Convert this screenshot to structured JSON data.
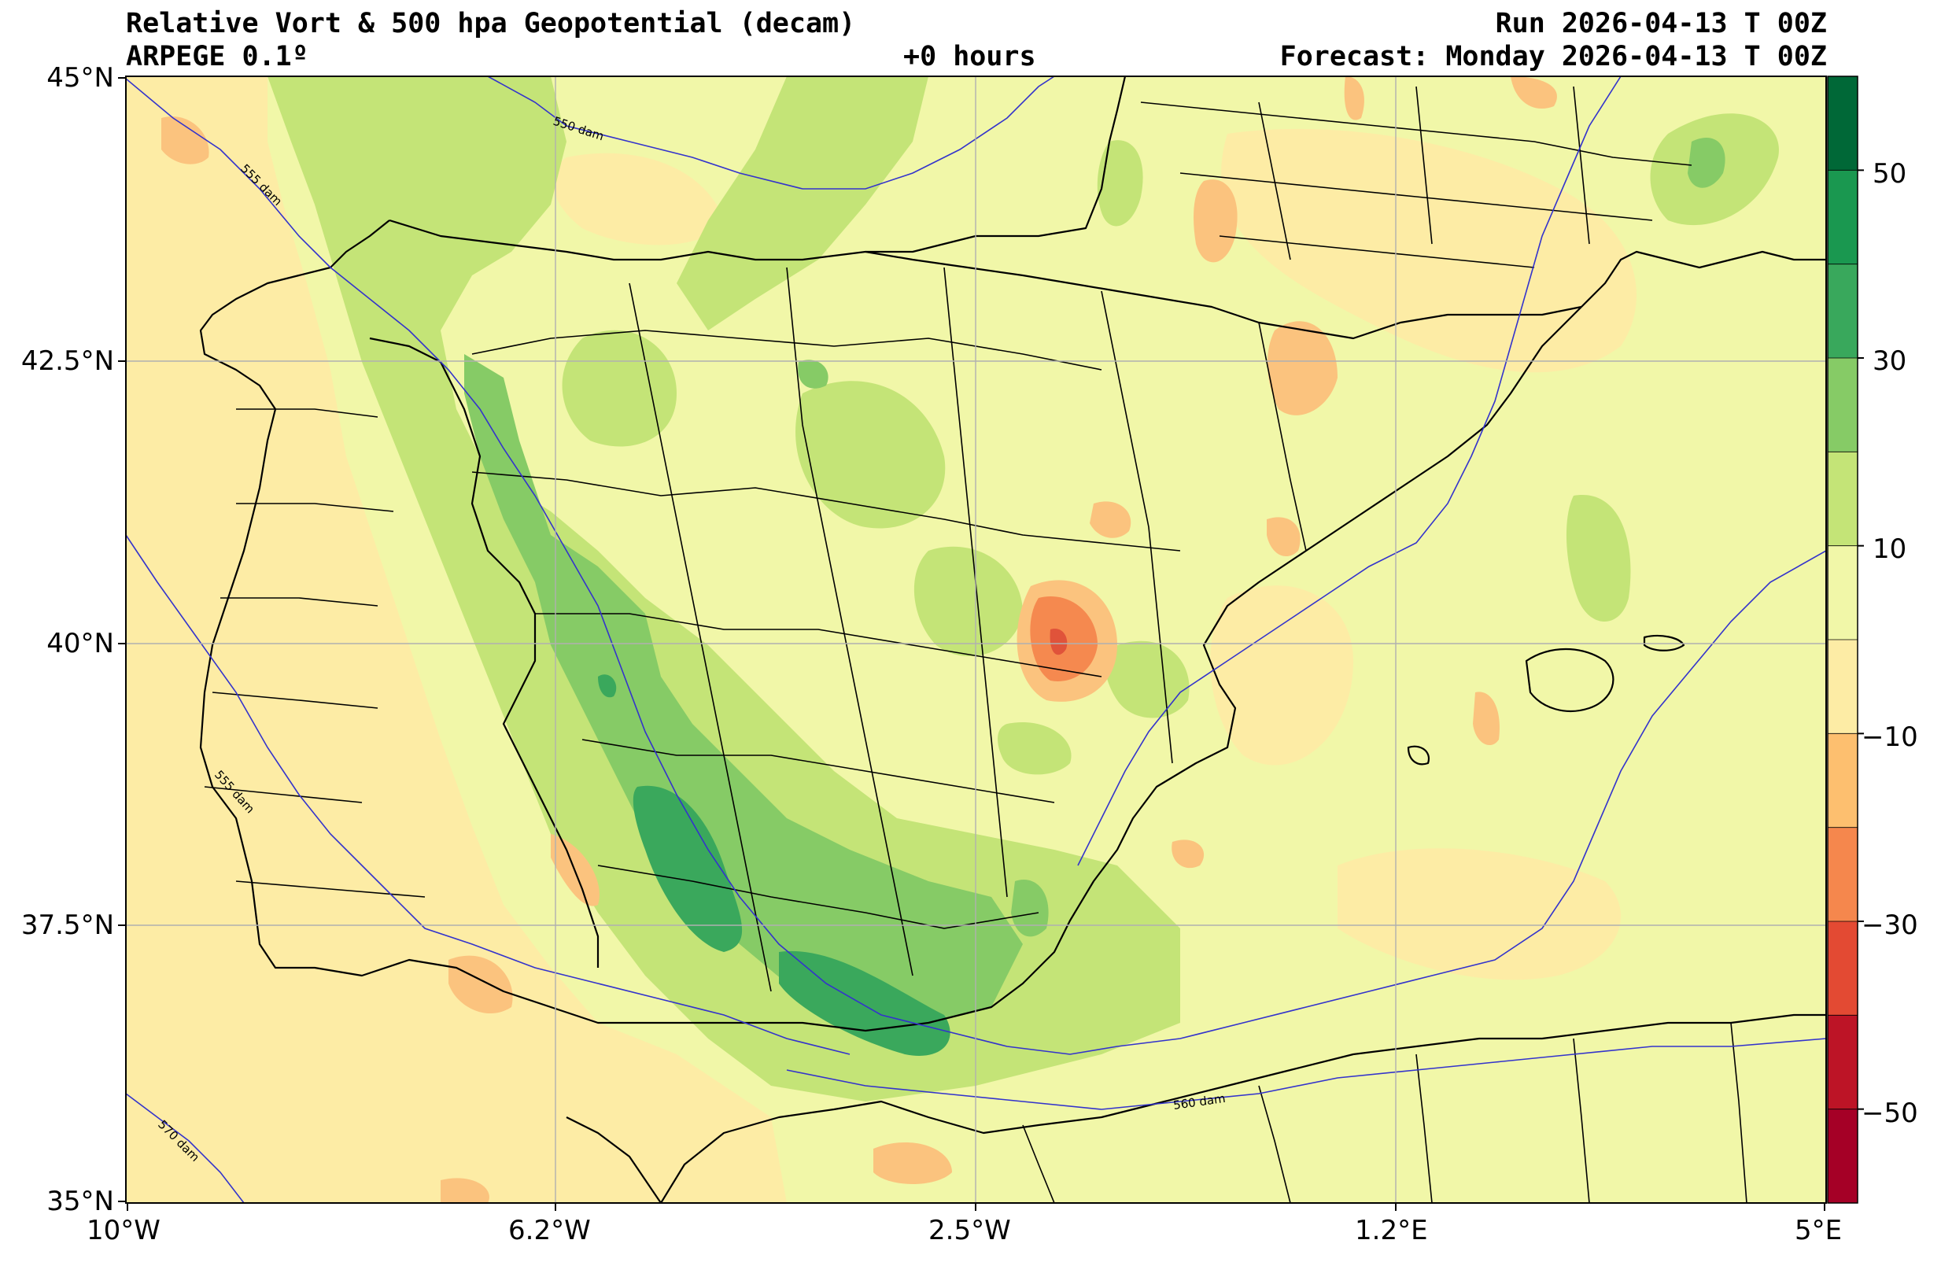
{
  "header": {
    "title": "Relative Vort & 500 hpa Geopotential (decam)",
    "model": "ARPEGE 0.1º",
    "lead": "+0 hours",
    "run": "Run 2026-04-13 T 00Z",
    "forecast": "Forecast: Monday 2026-04-13 T 00Z"
  },
  "map": {
    "lon_range": [
      -10,
      5
    ],
    "lat_range": [
      35,
      45
    ],
    "lat_ticks": [
      "45°N",
      "42.5°N",
      "40°N",
      "37.5°N",
      "35°N"
    ],
    "lon_ticks": [
      "10°W",
      "6.2°W",
      "2.5°W",
      "1.2°E",
      "5°E"
    ],
    "contour_labels": [
      "550 dam",
      "555 dam",
      "555 dam",
      "560 dam",
      "570 dam"
    ],
    "colors": {
      "neutral_positive": "#f1f7a8",
      "neutral_negative": "#fdeca5",
      "green_light": "#c4e477",
      "green_mid": "#85c868",
      "green_dark": "#3aa85c",
      "orange_light": "#fbc37e",
      "orange_mid": "#f5894f",
      "red": "#e0533a",
      "grid": "#b0b0b0",
      "isohypse": "#3333cc",
      "border": "#000000"
    }
  },
  "colorbar": {
    "tick_labels": [
      "50",
      "30",
      "10",
      "−10",
      "−30",
      "−50"
    ],
    "bins": [
      {
        "from": 50,
        "to": 60,
        "color": "#006837"
      },
      {
        "from": 40,
        "to": 50,
        "color": "#1a9850"
      },
      {
        "from": 30,
        "to": 40,
        "color": "#39a85c"
      },
      {
        "from": 20,
        "to": 30,
        "color": "#86cb66"
      },
      {
        "from": 10,
        "to": 20,
        "color": "#c4e477"
      },
      {
        "from": 0,
        "to": 10,
        "color": "#f1f7a8"
      },
      {
        "from": -10,
        "to": 0,
        "color": "#fdeca5"
      },
      {
        "from": -20,
        "to": -10,
        "color": "#fdbf6f"
      },
      {
        "from": -30,
        "to": -20,
        "color": "#f5874d"
      },
      {
        "from": -40,
        "to": -30,
        "color": "#e34a33"
      },
      {
        "from": -50,
        "to": -40,
        "color": "#bd1426"
      },
      {
        "from": -60,
        "to": -50,
        "color": "#a50026"
      }
    ]
  }
}
